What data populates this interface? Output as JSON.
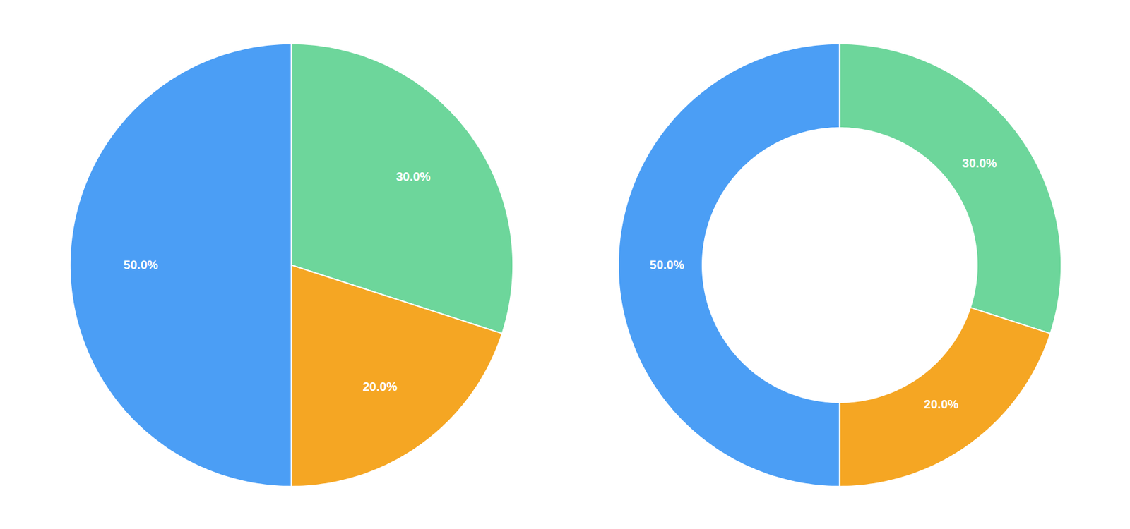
{
  "chart_data": [
    {
      "type": "pie",
      "values": [
        50.0,
        30.0,
        20.0
      ],
      "value_labels": [
        "50.0%",
        "30.0%",
        "20.0%"
      ],
      "colors": [
        "#4B9EF5",
        "#6DD69B",
        "#F5A623"
      ],
      "data_labels": true
    },
    {
      "type": "donut",
      "values": [
        50.0,
        30.0,
        20.0
      ],
      "value_labels": [
        "50.0%",
        "30.0%",
        "20.0%"
      ],
      "colors": [
        "#4B9EF5",
        "#6DD69B",
        "#F5A623"
      ],
      "data_labels": true
    }
  ]
}
